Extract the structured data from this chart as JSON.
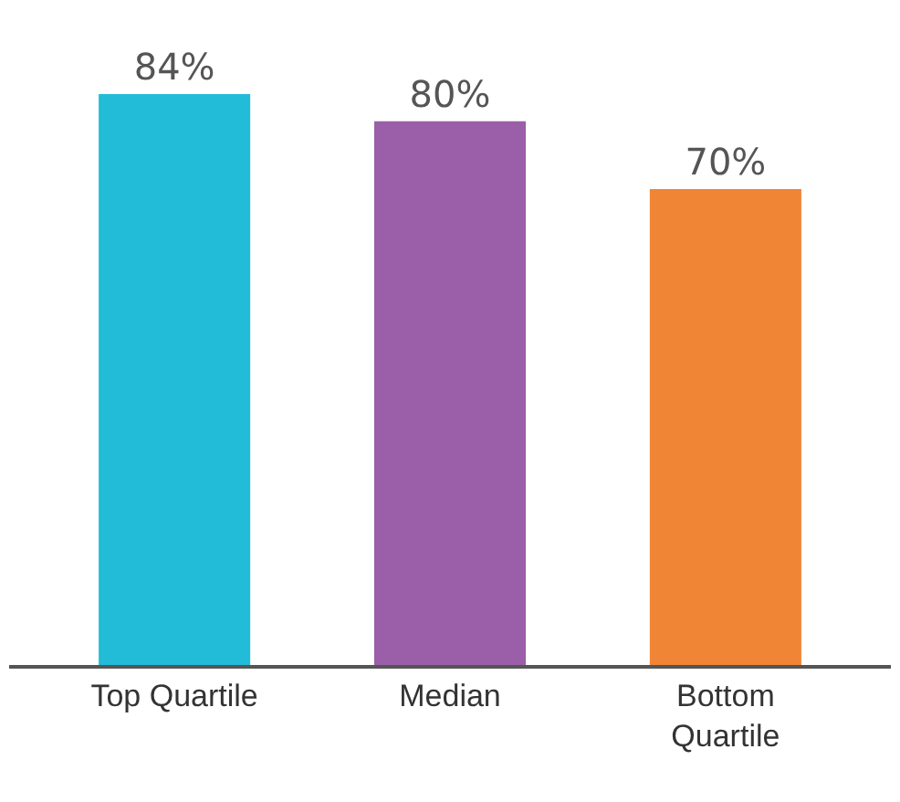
{
  "chart_data": {
    "type": "bar",
    "categories": [
      "Top Quartile",
      "Median",
      "Bottom\nQuartile"
    ],
    "values": [
      84,
      80,
      70
    ],
    "value_labels": [
      "84%",
      "80%",
      "70%"
    ],
    "colors": [
      "#22bcd8",
      "#9b5ea8",
      "#ef8535"
    ],
    "legend": false
  }
}
